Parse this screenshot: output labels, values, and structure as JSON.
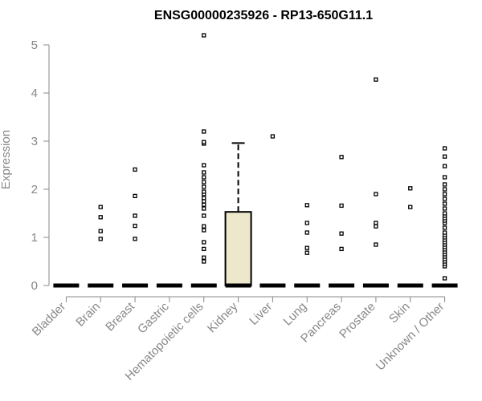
{
  "chart_data": {
    "type": "boxplot",
    "title": "ENSG00000235926 - RP13-650G11.1",
    "xlabel": "",
    "ylabel": "Expression",
    "ylim": [
      0,
      5.25
    ],
    "yticks": [
      0,
      1,
      2,
      3,
      4,
      5
    ],
    "categories": [
      "Bladder",
      "Brain",
      "Breast",
      "Gastric",
      "Hematopoietic cells",
      "Kidney",
      "Liver",
      "Lung",
      "Pancreas",
      "Prostate",
      "Skin",
      "Unknown / Other"
    ],
    "boxes": [
      {
        "category": "Bladder",
        "q1": 0,
        "median": 0,
        "q3": 0,
        "whisker_low": 0,
        "whisker_high": 0,
        "outliers": []
      },
      {
        "category": "Brain",
        "q1": 0,
        "median": 0,
        "q3": 0,
        "whisker_low": 0,
        "whisker_high": 0,
        "outliers": [
          0.97,
          1.13,
          1.42,
          1.63
        ]
      },
      {
        "category": "Breast",
        "q1": 0,
        "median": 0,
        "q3": 0,
        "whisker_low": 0,
        "whisker_high": 0,
        "outliers": [
          0.97,
          1.24,
          1.45,
          1.86,
          2.41
        ]
      },
      {
        "category": "Gastric",
        "q1": 0,
        "median": 0,
        "q3": 0,
        "whisker_low": 0,
        "whisker_high": 0,
        "outliers": []
      },
      {
        "category": "Hematopoietic cells",
        "q1": 0,
        "median": 0,
        "q3": 0,
        "whisker_low": 0,
        "whisker_high": 0,
        "outliers": [
          0.5,
          0.58,
          0.76,
          0.9,
          1.15,
          1.23,
          1.45,
          1.6,
          1.68,
          1.75,
          1.82,
          1.9,
          1.95,
          2.05,
          2.15,
          2.25,
          2.35,
          2.5,
          2.95,
          2.98,
          3.2,
          5.2
        ]
      },
      {
        "category": "Kidney",
        "q1": 0,
        "median": 0,
        "q3": 1.53,
        "whisker_low": 0,
        "whisker_high": 2.96,
        "outliers": []
      },
      {
        "category": "Liver",
        "q1": 0,
        "median": 0,
        "q3": 0,
        "whisker_low": 0,
        "whisker_high": 0,
        "outliers": [
          3.1
        ]
      },
      {
        "category": "Lung",
        "q1": 0,
        "median": 0,
        "q3": 0,
        "whisker_low": 0,
        "whisker_high": 0,
        "outliers": [
          0.68,
          0.78,
          1.1,
          1.3,
          1.67
        ]
      },
      {
        "category": "Pancreas",
        "q1": 0,
        "median": 0,
        "q3": 0,
        "whisker_low": 0,
        "whisker_high": 0,
        "outliers": [
          0.76,
          1.08,
          1.66,
          2.67
        ]
      },
      {
        "category": "Prostate",
        "q1": 0,
        "median": 0,
        "q3": 0,
        "whisker_low": 0,
        "whisker_high": 0,
        "outliers": [
          0.85,
          1.23,
          1.3,
          1.9,
          4.28
        ]
      },
      {
        "category": "Skin",
        "q1": 0,
        "median": 0,
        "q3": 0,
        "whisker_low": 0,
        "whisker_high": 0,
        "outliers": [
          1.63,
          2.02
        ]
      },
      {
        "category": "Unknown / Other",
        "q1": 0,
        "median": 0,
        "q3": 0,
        "whisker_low": 0,
        "whisker_high": 0,
        "outliers": [
          0.15,
          0.4,
          0.45,
          0.5,
          0.55,
          0.6,
          0.65,
          0.7,
          0.75,
          0.8,
          0.85,
          0.9,
          0.95,
          1.0,
          1.05,
          1.1,
          1.2,
          1.3,
          1.35,
          1.4,
          1.45,
          1.5,
          1.6,
          1.7,
          1.8,
          1.9,
          2.0,
          2.1,
          2.25,
          2.48,
          2.68,
          2.85
        ]
      }
    ],
    "colors": {
      "box_fill": "#ede8cc",
      "axis": "#888888",
      "title": "#000000",
      "marks": "#000000"
    }
  }
}
